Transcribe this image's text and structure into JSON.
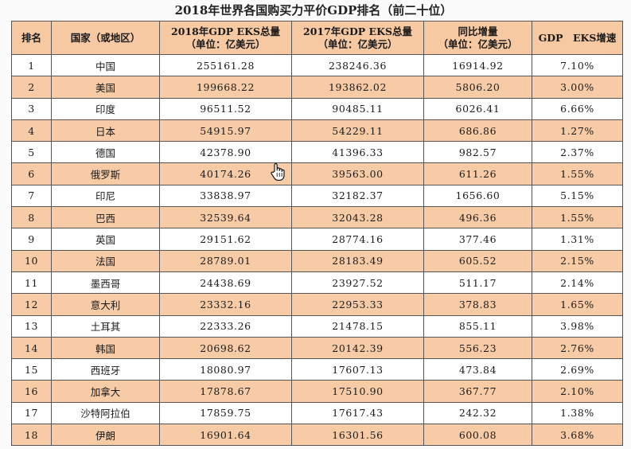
{
  "title": "2018年世界各国购买力平价GDP排名（前二十位）",
  "header": {
    "rank": "排名",
    "country": "国家（或地区）",
    "gdp2018_line1": "2018年GDP EKS总量",
    "gdp2018_line2": "（单位：亿美元）",
    "gdp2017_line1": "2017年GDP EKS总量",
    "gdp2017_line2": "（单位：亿美元）",
    "growth_line1": "同比增量",
    "growth_line2": "（单位：亿美元）",
    "rate": "GDP　EKS增速"
  },
  "rows": [
    {
      "rank": "1",
      "country": "中国",
      "gdp2018": "255161.28",
      "gdp2017": "238246.36",
      "growth": "16914.92",
      "rate": "7.10%"
    },
    {
      "rank": "2",
      "country": "美国",
      "gdp2018": "199668.22",
      "gdp2017": "193862.02",
      "growth": "5806.20",
      "rate": "3.00%"
    },
    {
      "rank": "3",
      "country": "印度",
      "gdp2018": "96511.52",
      "gdp2017": "90485.11",
      "growth": "6026.41",
      "rate": "6.66%"
    },
    {
      "rank": "4",
      "country": "日本",
      "gdp2018": "54915.97",
      "gdp2017": "54229.11",
      "growth": "686.86",
      "rate": "1.27%"
    },
    {
      "rank": "5",
      "country": "德国",
      "gdp2018": "42378.90",
      "gdp2017": "41396.33",
      "growth": "982.57",
      "rate": "2.37%"
    },
    {
      "rank": "6",
      "country": "俄罗斯",
      "gdp2018": "40174.26",
      "gdp2017": "39563.00",
      "growth": "611.26",
      "rate": "1.55%"
    },
    {
      "rank": "7",
      "country": "印尼",
      "gdp2018": "33838.97",
      "gdp2017": "32182.37",
      "growth": "1656.60",
      "rate": "5.15%"
    },
    {
      "rank": "8",
      "country": "巴西",
      "gdp2018": "32539.64",
      "gdp2017": "32043.28",
      "growth": "496.36",
      "rate": "1.55%"
    },
    {
      "rank": "9",
      "country": "英国",
      "gdp2018": "29151.62",
      "gdp2017": "28774.16",
      "growth": "377.46",
      "rate": "1.31%"
    },
    {
      "rank": "10",
      "country": "法国",
      "gdp2018": "28789.01",
      "gdp2017": "28183.49",
      "growth": "605.52",
      "rate": "2.15%"
    },
    {
      "rank": "11",
      "country": "墨西哥",
      "gdp2018": "24438.69",
      "gdp2017": "23927.52",
      "growth": "511.17",
      "rate": "2.14%"
    },
    {
      "rank": "12",
      "country": "意大利",
      "gdp2018": "23332.16",
      "gdp2017": "22953.33",
      "growth": "378.83",
      "rate": "1.65%"
    },
    {
      "rank": "13",
      "country": "土耳其",
      "gdp2018": "22333.26",
      "gdp2017": "21478.15",
      "growth": "855.11",
      "rate": "3.98%"
    },
    {
      "rank": "14",
      "country": "韩国",
      "gdp2018": "20698.62",
      "gdp2017": "20142.39",
      "growth": "556.23",
      "rate": "2.76%"
    },
    {
      "rank": "15",
      "country": "西班牙",
      "gdp2018": "18080.97",
      "gdp2017": "17607.13",
      "growth": "473.84",
      "rate": "2.69%"
    },
    {
      "rank": "16",
      "country": "加拿大",
      "gdp2018": "17878.67",
      "gdp2017": "17510.90",
      "growth": "367.77",
      "rate": "2.10%"
    },
    {
      "rank": "17",
      "country": "沙特阿拉伯",
      "gdp2018": "17859.75",
      "gdp2017": "17617.43",
      "growth": "242.32",
      "rate": "1.38%"
    },
    {
      "rank": "18",
      "country": "伊朗",
      "gdp2018": "16901.64",
      "gdp2017": "16301.56",
      "growth": "600.08",
      "rate": "3.68%"
    }
  ],
  "colors": {
    "header_fill": "#f6c9a3",
    "band_fill": "#f7cba6",
    "border": "#555555"
  },
  "icons": {
    "cursor": "hand-pointer-icon"
  }
}
